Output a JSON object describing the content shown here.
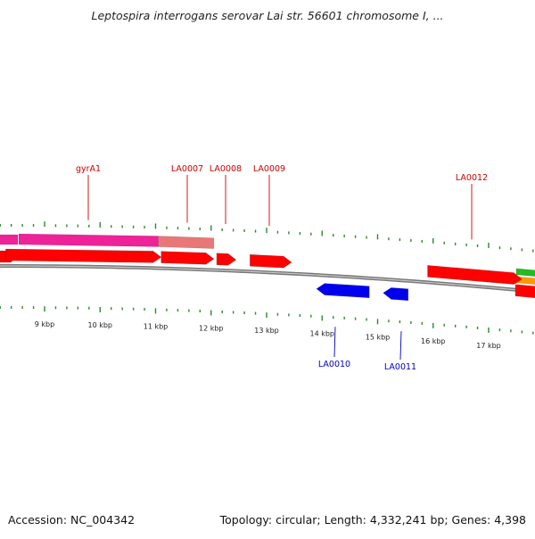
{
  "title": "Leptospira interrogans serovar Lai str. 56601 chromosome I, ...",
  "footer": {
    "accession": "Accession: NC_004342",
    "summary": "Topology: circular; Length: 4,332,241 bp; Genes: 4,398"
  },
  "ticks": [
    {
      "label": "9 kbp",
      "kbp": 9
    },
    {
      "label": "10 kbp",
      "kbp": 10
    },
    {
      "label": "11 kbp",
      "kbp": 11
    },
    {
      "label": "12 kbp",
      "kbp": 12
    },
    {
      "label": "13 kbp",
      "kbp": 13
    },
    {
      "label": "14 kbp",
      "kbp": 14
    },
    {
      "label": "15 kbp",
      "kbp": 15
    },
    {
      "label": "16 kbp",
      "kbp": 16
    },
    {
      "label": "17 kbp",
      "kbp": 17
    }
  ],
  "genes_forward": [
    {
      "label": "gyrA1",
      "start_kbp": 8.3,
      "end_kbp": 11.1
    },
    {
      "label": "LA0007",
      "start_kbp": 11.1,
      "end_kbp": 12.05
    },
    {
      "label": "LA0008",
      "start_kbp": 12.1,
      "end_kbp": 12.45
    },
    {
      "label": "LA0009",
      "start_kbp": 12.7,
      "end_kbp": 13.45
    },
    {
      "label": "LA0012",
      "start_kbp": 15.9,
      "end_kbp": 17.6
    }
  ],
  "genes_reverse": [
    {
      "label": "LA0010",
      "start_kbp": 13.9,
      "end_kbp": 14.85
    },
    {
      "label": "LA0011",
      "start_kbp": 15.1,
      "end_kbp": 15.55
    }
  ],
  "colors": {
    "forward_gene": "#ff0000",
    "reverse_gene": "#0000ee",
    "cds_feature": "#ee2299",
    "cds_feature_light": "#e87878",
    "tick": "#2a8a2a",
    "backbone": "#888888",
    "label_top": "#cc0000",
    "label_bottom": "#0000bb"
  }
}
